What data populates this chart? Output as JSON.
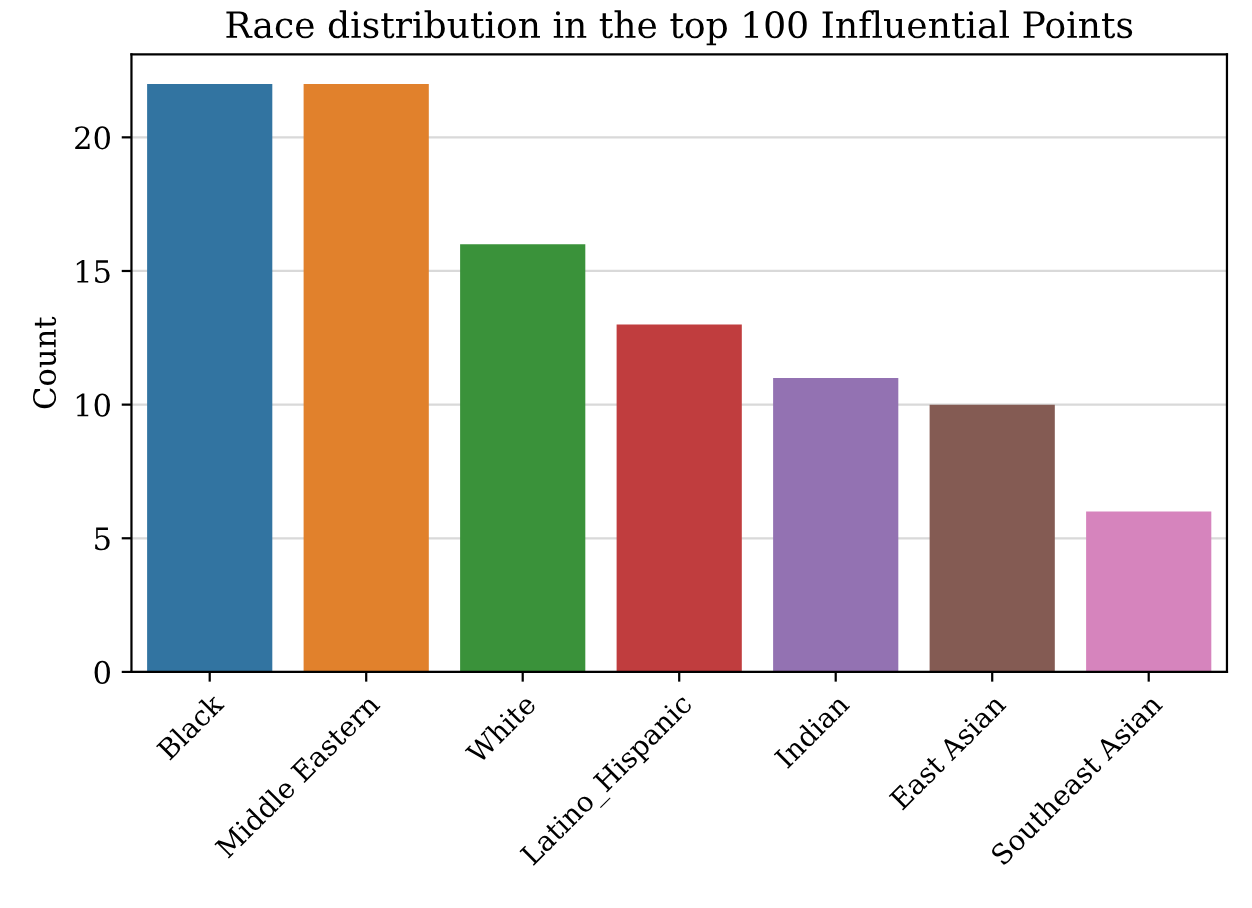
{
  "chart_data": {
    "type": "bar",
    "title": "Race distribution in the top 100 Influential Points",
    "ylabel": "Count",
    "categories": [
      "Black",
      "Middle Eastern",
      "White",
      "Latino_Hispanic",
      "Indian",
      "East Asian",
      "Southeast Asian"
    ],
    "values": [
      22,
      22,
      16,
      13,
      11,
      10,
      6
    ],
    "colors": [
      "#3274a1",
      "#e1812c",
      "#3a923a",
      "#c03d3e",
      "#9372b2",
      "#845b53",
      "#d684bd"
    ],
    "ylim": [
      0,
      23.1
    ],
    "yticks": [
      0,
      5,
      10,
      15,
      20
    ],
    "grid": "y",
    "legend": false
  }
}
